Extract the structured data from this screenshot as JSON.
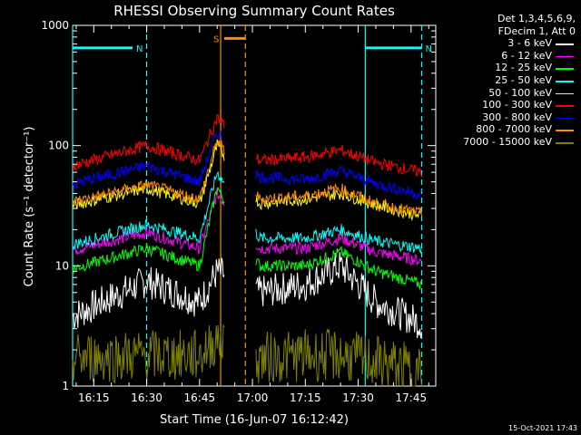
{
  "chart_data": {
    "type": "line",
    "title": "RHESSI Observing Summary Count Rates",
    "xlabel": "Start Time (16-Jun-07 16:12:42)",
    "ylabel": "Count Rate (s⁻¹ detector⁻¹)",
    "yscale": "log",
    "ylim": [
      1,
      1000
    ],
    "xlim": [
      "16:09",
      "17:52"
    ],
    "x_ticks": [
      "16:15",
      "16:30",
      "16:45",
      "17:00",
      "17:15",
      "17:30",
      "17:45"
    ],
    "y_ticks": [
      "1",
      "10",
      "100",
      "1000"
    ],
    "legend_header": [
      "Det 1,3,4,5,6,9,",
      "FDecim 1, Att 0"
    ],
    "footer": "15-Oct-2021 17:43",
    "flags": [
      {
        "label": "N",
        "color": "#00ffff",
        "level": 650,
        "start": "16:09",
        "end": "16:26"
      },
      {
        "label": "N",
        "color": "#00ffff",
        "level": 650,
        "start": "17:32",
        "end": "17:48"
      },
      {
        "label": "S",
        "color": "#ff8c00",
        "level": 780,
        "start": "16:52",
        "end": "16:58"
      }
    ],
    "markers": [
      {
        "time": "16:09",
        "color": "#00ffff",
        "style": "solid"
      },
      {
        "time": "16:30",
        "color": "#00ffff",
        "style": "dashed"
      },
      {
        "time": "16:51",
        "color": "#ff8c00",
        "style": "solid"
      },
      {
        "time": "16:58",
        "color": "#ff8c00",
        "style": "dashed"
      },
      {
        "time": "17:32",
        "color": "#00ffff",
        "style": "solid"
      },
      {
        "time": "17:48",
        "color": "#00ffff",
        "style": "dashed"
      }
    ],
    "data_gap": [
      "16:52",
      "17:01"
    ],
    "series": [
      {
        "name": "3 - 6 keV",
        "color": "#ffffff",
        "values": {
          "16:09": 3.8,
          "16:30": 7.5,
          "16:45": 5.0,
          "16:50": 9,
          "17:02": 6.0,
          "17:15": 7.0,
          "17:25": 10,
          "17:35": 5.0,
          "17:48": 3.3
        }
      },
      {
        "name": "6 - 12 keV",
        "color": "#ff00ff",
        "values": {
          "16:09": 13.5,
          "16:30": 19,
          "16:45": 14,
          "16:50": 40,
          "17:02": 14,
          "17:15": 14,
          "17:25": 17,
          "17:35": 13,
          "17:48": 11
        }
      },
      {
        "name": "12 - 25 keV",
        "color": "#00ff00",
        "values": {
          "16:09": 9.5,
          "16:30": 14,
          "16:45": 10,
          "16:50": 45,
          "17:02": 10,
          "17:15": 10,
          "17:25": 13,
          "17:35": 9,
          "17:48": 7
        }
      },
      {
        "name": "25 - 50 keV",
        "color": "#00ffff",
        "values": {
          "16:09": 15,
          "16:30": 22,
          "16:45": 17,
          "16:50": 60,
          "17:02": 17,
          "17:15": 17,
          "17:25": 20,
          "17:35": 16,
          "17:48": 14
        }
      },
      {
        "name": "50 - 100 keV",
        "color": "#ffff00",
        "values": {
          "16:09": 32,
          "16:30": 44,
          "16:45": 33,
          "16:50": 100,
          "17:02": 33,
          "17:15": 36,
          "17:25": 40,
          "17:35": 32,
          "17:48": 26
        }
      },
      {
        "name": "100 - 300 keV",
        "color": "#ff0000",
        "values": {
          "16:09": 68,
          "16:30": 100,
          "16:45": 75,
          "16:50": 170,
          "17:02": 75,
          "17:15": 80,
          "17:25": 92,
          "17:35": 72,
          "17:48": 60
        }
      },
      {
        "name": "300 - 800 keV",
        "color": "#0000ff",
        "values": {
          "16:09": 48,
          "16:30": 68,
          "16:45": 50,
          "16:50": 130,
          "17:02": 55,
          "17:15": 52,
          "17:25": 62,
          "17:35": 48,
          "17:48": 39
        }
      },
      {
        "name": "800 - 7000 keV",
        "color": "#ff8c00",
        "values": {
          "16:09": 34,
          "16:30": 47,
          "16:45": 36,
          "16:50": 110,
          "17:02": 36,
          "17:15": 38,
          "17:25": 44,
          "17:35": 33,
          "17:48": 27
        }
      },
      {
        "name": "7000 - 15000 keV",
        "color": "#808000",
        "values": {
          "16:09": 1.7,
          "16:30": 1.8,
          "16:45": 1.8,
          "16:50": 2.5,
          "17:02": 1.7,
          "17:15": 1.8,
          "17:25": 1.8,
          "17:35": 1.6,
          "17:48": 1.3
        }
      }
    ]
  }
}
